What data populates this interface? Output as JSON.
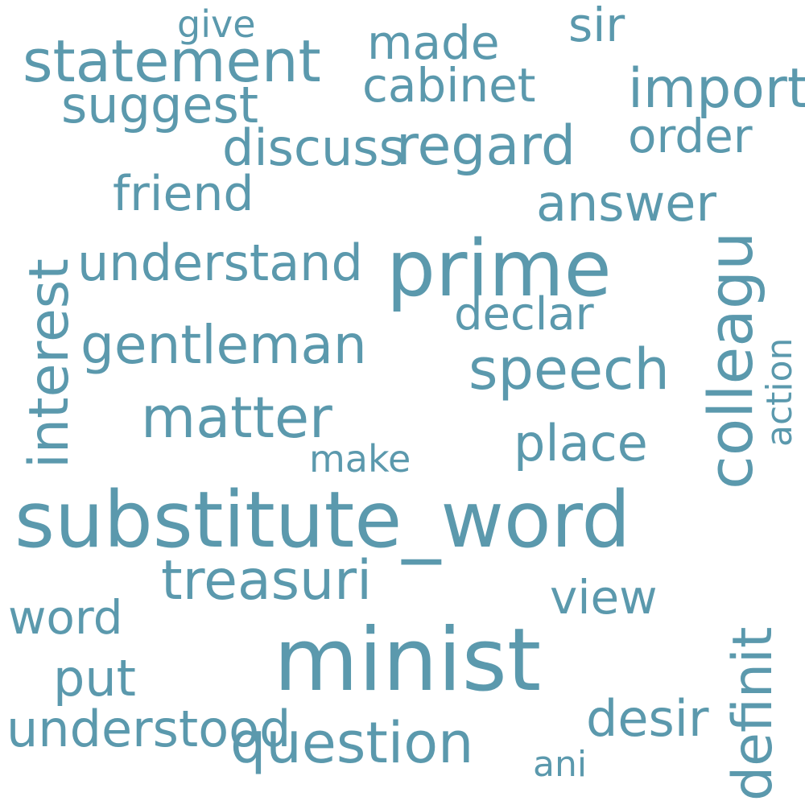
{
  "color": "#5b99ad",
  "background": "#ffffff",
  "words": [
    {
      "text": "substitute_word"
    },
    {
      "text": "minist"
    },
    {
      "text": "prime"
    },
    {
      "text": "statement"
    },
    {
      "text": "question"
    },
    {
      "text": "regard"
    },
    {
      "text": "matter"
    },
    {
      "text": "gentleman"
    },
    {
      "text": "speech"
    },
    {
      "text": "friend"
    },
    {
      "text": "understand"
    },
    {
      "text": "treasuri"
    },
    {
      "text": "understood"
    },
    {
      "text": "discuss"
    },
    {
      "text": "answer"
    },
    {
      "text": "import"
    },
    {
      "text": "made"
    },
    {
      "text": "cabinet"
    },
    {
      "text": "sir"
    },
    {
      "text": "order"
    },
    {
      "text": "suggest"
    },
    {
      "text": "declar"
    },
    {
      "text": "place"
    },
    {
      "text": "put"
    },
    {
      "text": "desir"
    },
    {
      "text": "view"
    },
    {
      "text": "word"
    },
    {
      "text": "ani"
    },
    {
      "text": "make"
    },
    {
      "text": "give"
    },
    {
      "text": "interest"
    },
    {
      "text": "colleagu"
    },
    {
      "text": "definit"
    },
    {
      "text": "action"
    }
  ]
}
